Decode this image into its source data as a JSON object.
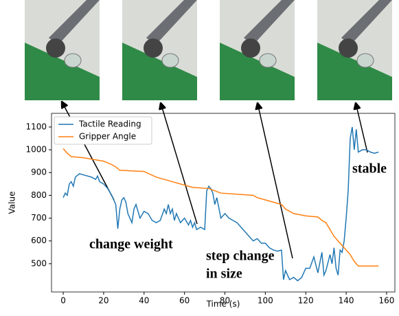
{
  "chart_data": {
    "type": "line",
    "xlabel": "Time (s)",
    "ylabel": "Value",
    "xlim": [
      -5.8,
      164.1
    ],
    "ylim": [
      376,
      1160
    ],
    "xticks": [
      0,
      20,
      40,
      60,
      80,
      100,
      120,
      140,
      160
    ],
    "yticks": [
      500,
      600,
      700,
      800,
      900,
      1000,
      1100
    ],
    "legend": "upper left",
    "series": [
      {
        "name": "Tactile Reading",
        "color": "#1f77b4",
        "x": [
          0,
          1,
          2,
          3,
          4,
          5,
          6,
          8,
          10,
          12,
          14,
          16,
          17,
          18,
          20,
          22,
          24,
          25,
          26,
          27,
          28,
          29,
          30,
          31,
          32,
          33,
          34,
          35,
          36,
          37,
          38,
          40,
          42,
          44,
          46,
          48,
          50,
          51,
          52,
          53,
          54,
          55,
          56,
          58,
          60,
          62,
          63,
          64,
          65,
          66,
          68,
          70,
          71,
          72,
          73,
          74,
          75,
          76,
          78,
          80,
          82,
          84,
          86,
          88,
          90,
          92,
          94,
          96,
          98,
          100,
          102,
          104,
          106,
          108,
          109,
          110,
          111,
          112,
          114,
          116,
          118,
          120,
          122,
          124,
          126,
          128,
          129,
          130,
          132,
          133,
          134,
          135,
          136,
          137,
          138,
          139,
          140,
          141,
          142,
          143,
          144,
          145,
          146,
          148,
          150,
          152,
          154,
          156
        ],
        "values": [
          790,
          810,
          800,
          850,
          860,
          840,
          880,
          895,
          890,
          885,
          880,
          870,
          885,
          860,
          850,
          830,
          800,
          780,
          760,
          654,
          740,
          780,
          790,
          770,
          720,
          700,
          680,
          740,
          760,
          730,
          700,
          730,
          720,
          690,
          680,
          690,
          740,
          720,
          760,
          720,
          740,
          690,
          720,
          680,
          700,
          670,
          690,
          660,
          680,
          650,
          660,
          650,
          820,
          840,
          830,
          810,
          760,
          790,
          700,
          720,
          700,
          690,
          680,
          660,
          640,
          620,
          600,
          610,
          590,
          590,
          570,
          560,
          555,
          560,
          430,
          470,
          450,
          430,
          440,
          425,
          440,
          480,
          480,
          530,
          460,
          550,
          450,
          470,
          540,
          500,
          570,
          480,
          450,
          560,
          550,
          600,
          700,
          820,
          1050,
          1100,
          1000,
          1090,
          990,
          1000,
          1000,
          990,
          985,
          990
        ]
      },
      {
        "name": "Gripper Angle",
        "color": "#ff7f0e",
        "x": [
          0,
          2,
          4,
          10,
          20,
          24,
          26,
          28,
          40,
          46,
          52,
          58,
          62,
          64,
          72,
          78,
          94,
          96,
          100,
          108,
          110,
          114,
          120,
          126,
          128,
          130,
          132,
          134,
          136,
          138,
          140,
          142,
          144,
          146,
          156
        ],
        "values": [
          1005,
          985,
          970,
          965,
          950,
          935,
          925,
          910,
          905,
          880,
          865,
          850,
          840,
          835,
          830,
          810,
          800,
          790,
          780,
          760,
          740,
          720,
          710,
          705,
          690,
          680,
          650,
          620,
          600,
          580,
          560,
          540,
          510,
          490,
          490
        ]
      }
    ],
    "annotations": [
      {
        "lines": [
          "change weight"
        ]
      },
      {
        "lines": [
          "step change",
          "in size"
        ]
      },
      {
        "lines": [
          "stable"
        ]
      }
    ]
  }
}
